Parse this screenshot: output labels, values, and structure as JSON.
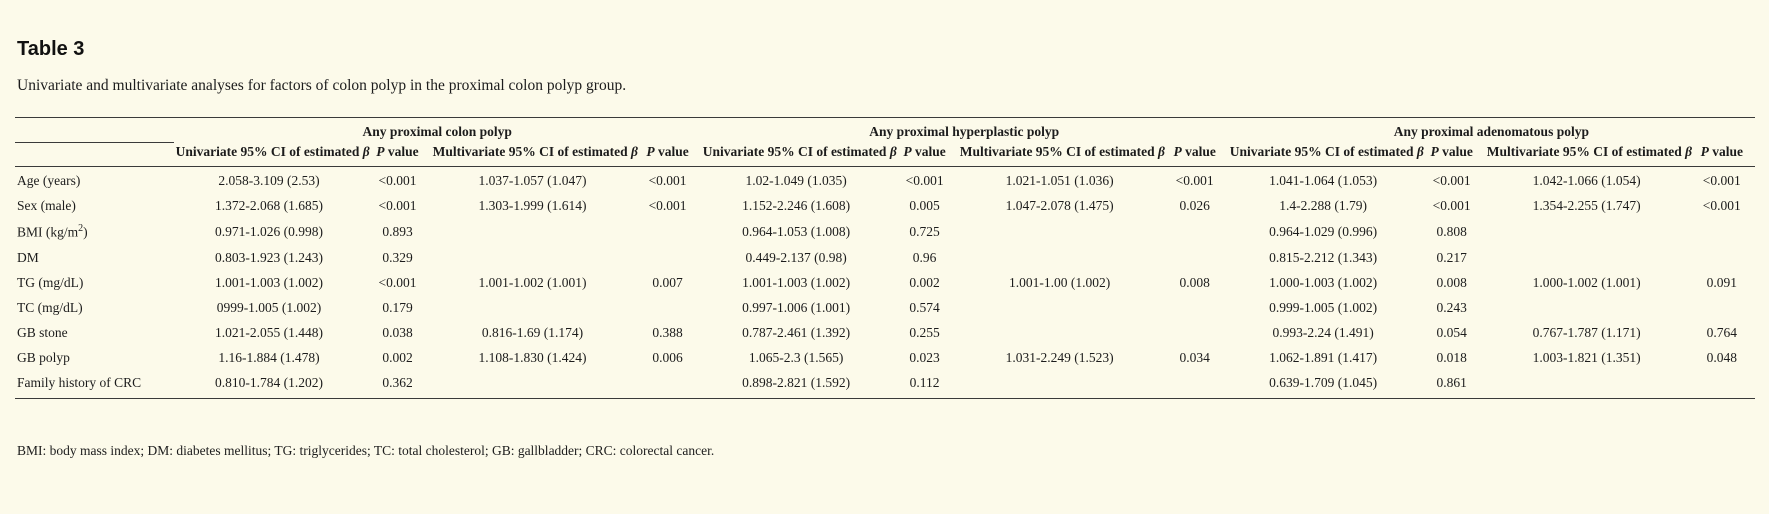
{
  "page": {
    "title": "Table 3",
    "subtitle": "Univariate and multivariate analyses for factors of colon polyp in the proximal colon polyp group.",
    "footnote": "BMI: body mass index; DM: diabetes mellitus; TG: triglycerides; TC: total cholesterol; GB: gallbladder; CRC: colorectal cancer."
  },
  "table": {
    "groups": [
      {
        "label": "Any proximal colon polyp"
      },
      {
        "label": "Any proximal hyperplastic polyp"
      },
      {
        "label": "Any proximal adenomatous polyp"
      }
    ],
    "col_headers": {
      "univariate": "Univariate 95% CI of estimated",
      "multivariate": "Multivariate 95% CI of estimated",
      "beta": "β",
      "p": "P",
      "value": "value"
    },
    "rows": [
      {
        "label": "Age (years)",
        "cells": [
          "2.058-3.109 (2.53)",
          "<0.001",
          "1.037-1.057 (1.047)",
          "<0.001",
          "1.02-1.049 (1.035)",
          "<0.001",
          "1.021-1.051 (1.036)",
          "<0.001",
          "1.041-1.064 (1.053)",
          "<0.001",
          "1.042-1.066 (1.054)",
          "<0.001"
        ]
      },
      {
        "label": "Sex (male)",
        "cells": [
          "1.372-2.068 (1.685)",
          "<0.001",
          "1.303-1.999 (1.614)",
          "<0.001",
          "1.152-2.246 (1.608)",
          "0.005",
          "1.047-2.078 (1.475)",
          "0.026",
          "1.4-2.288 (1.79)",
          "<0.001",
          "1.354-2.255 (1.747)",
          "<0.001"
        ]
      },
      {
        "label": "BMI (kg/m",
        "label_sup": "2",
        "label_after": ")",
        "cells": [
          "0.971-1.026 (0.998)",
          "0.893",
          "",
          "",
          "0.964-1.053 (1.008)",
          "0.725",
          "",
          "",
          "0.964-1.029 (0.996)",
          "0.808",
          "",
          ""
        ]
      },
      {
        "label": "DM",
        "cells": [
          "0.803-1.923 (1.243)",
          "0.329",
          "",
          "",
          "0.449-2.137 (0.98)",
          "0.96",
          "",
          "",
          "0.815-2.212 (1.343)",
          "0.217",
          "",
          ""
        ]
      },
      {
        "label": "TG (mg/dL)",
        "cells": [
          "1.001-1.003 (1.002)",
          "<0.001",
          "1.001-1.002 (1.001)",
          "0.007",
          "1.001-1.003 (1.002)",
          "0.002",
          "1.001-1.00 (1.002)",
          "0.008",
          "1.000-1.003 (1.002)",
          "0.008",
          "1.000-1.002 (1.001)",
          "0.091"
        ]
      },
      {
        "label": "TC (mg/dL)",
        "cells": [
          "0999-1.005 (1.002)",
          "0.179",
          "",
          "",
          "0.997-1.006 (1.001)",
          "0.574",
          "",
          "",
          "0.999-1.005 (1.002)",
          "0.243",
          "",
          ""
        ]
      },
      {
        "label": "GB stone",
        "cells": [
          "1.021-2.055 (1.448)",
          "0.038",
          "0.816-1.69 (1.174)",
          "0.388",
          "0.787-2.461 (1.392)",
          "0.255",
          "",
          "",
          "0.993-2.24 (1.491)",
          "0.054",
          "0.767-1.787 (1.171)",
          "0.764"
        ]
      },
      {
        "label": "GB polyp",
        "cells": [
          "1.16-1.884 (1.478)",
          "0.002",
          "1.108-1.830 (1.424)",
          "0.006",
          "1.065-2.3 (1.565)",
          "0.023",
          "1.031-2.249 (1.523)",
          "0.034",
          "1.062-1.891 (1.417)",
          "0.018",
          "1.003-1.821 (1.351)",
          "0.048"
        ]
      },
      {
        "label": "Family history of CRC",
        "cells": [
          "0.810-1.784 (1.202)",
          "0.362",
          "",
          "",
          "0.898-2.821 (1.592)",
          "0.112",
          "",
          "",
          "0.639-1.709 (1.045)",
          "0.861",
          "",
          ""
        ]
      }
    ]
  }
}
